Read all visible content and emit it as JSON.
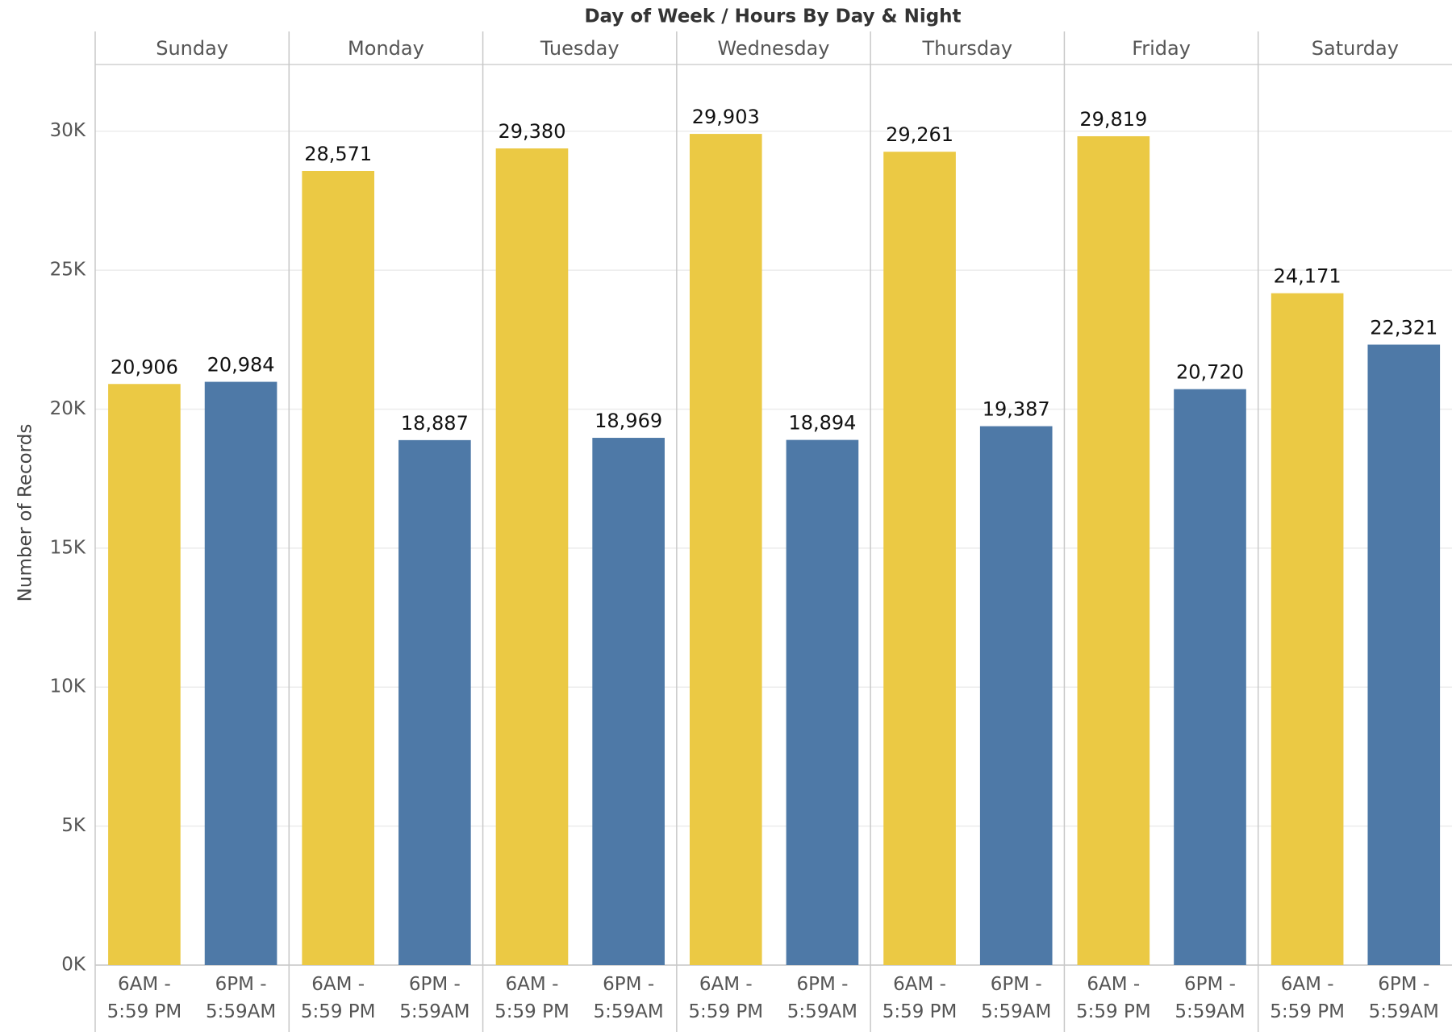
{
  "chart_data": {
    "type": "bar",
    "title": "Day of Week  /  Hours By Day & Night",
    "y_label": "Number of Records",
    "categories": [
      "Sunday",
      "Monday",
      "Tuesday",
      "Wednesday",
      "Thursday",
      "Friday",
      "Saturday"
    ],
    "series": [
      {
        "name": "6AM - 5:59 PM",
        "color": "#EBC944",
        "values": [
          20906,
          28571,
          29380,
          29903,
          29261,
          29819,
          24171
        ],
        "value_labels": [
          "20,906",
          "28,571",
          "29,380",
          "29,903",
          "29,261",
          "29,819",
          "24,171"
        ]
      },
      {
        "name": "6PM - 5:59AM",
        "color": "#4E79A7",
        "values": [
          20984,
          18887,
          18969,
          18894,
          19387,
          20720,
          22321
        ],
        "value_labels": [
          "20,984",
          "18,887",
          "18,969",
          "18,894",
          "19,387",
          "20,720",
          "22,321"
        ]
      }
    ],
    "ylim": [
      0,
      32400
    ],
    "yticks": [
      {
        "value": 0,
        "label": "0K"
      },
      {
        "value": 5000,
        "label": "5K"
      },
      {
        "value": 10000,
        "label": "10K"
      },
      {
        "value": 15000,
        "label": "15K"
      },
      {
        "value": 20000,
        "label": "20K"
      },
      {
        "value": 25000,
        "label": "25K"
      },
      {
        "value": 30000,
        "label": "30K"
      }
    ],
    "grid": true
  }
}
